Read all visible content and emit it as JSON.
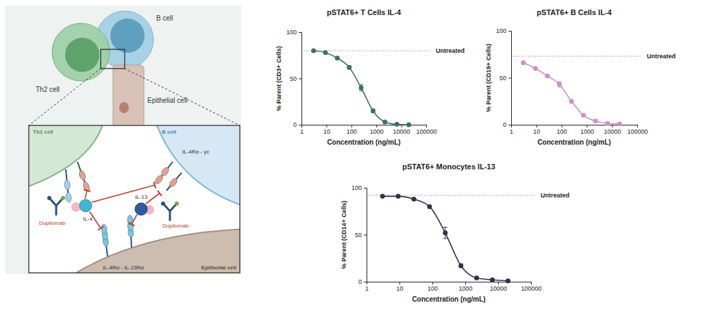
{
  "diagram": {
    "cells": [
      "Th2 cell",
      "B cell",
      "Epithelial cell"
    ],
    "inset": {
      "cells": [
        "Th2 cell",
        "B cell",
        "Epithelial cell"
      ],
      "receptors": [
        "IL-4Rα - γc",
        "IL-4Rα - IL-13Rα"
      ],
      "cytokines": [
        "IL-4",
        "IL-13"
      ],
      "drug": [
        "Dupilumab",
        "Dupilumab"
      ]
    }
  },
  "chart_data": [
    {
      "type": "line",
      "title": "pSTAT6+ T Cells IL-4",
      "xlabel": "Concentration (ng/mL)",
      "ylabel": "% Parent (CD3+ Cells)",
      "x": [
        3.05,
        9.14,
        27.4,
        82.3,
        247,
        741,
        2222,
        6667,
        20000
      ],
      "values": [
        80,
        78,
        72,
        62,
        40,
        15,
        3,
        0.5,
        0
      ],
      "errors": [
        0.5,
        0.8,
        1.5,
        2,
        3.5,
        2,
        0.5,
        0.3,
        0.2
      ],
      "color": "#3f6e6e",
      "marker": "circle",
      "log": "x",
      "grid": false,
      "xlim": [
        1,
        100000
      ],
      "xticks": [
        1,
        10,
        100,
        1000,
        10000,
        100000
      ],
      "ylim": [
        0,
        100
      ],
      "yticks": [
        0,
        50,
        100
      ],
      "annotations": [
        {
          "text": "Untreated",
          "y": 80
        }
      ]
    },
    {
      "type": "line",
      "title": "pSTAT6+ B Cells IL-4",
      "xlabel": "Concentration (ng/mL)",
      "ylabel": "% Parent (CD19+ Cells)",
      "x": [
        3.05,
        9.14,
        27.4,
        82.3,
        247,
        741,
        2222,
        6667,
        20000
      ],
      "values": [
        66,
        60,
        52,
        43,
        25,
        10,
        4,
        1.5,
        1
      ],
      "errors": [
        0.8,
        1,
        1,
        3,
        1,
        1,
        0.5,
        0.3,
        0.2
      ],
      "color": "#c993c2",
      "marker": "circle",
      "log": "x",
      "grid": false,
      "xlim": [
        1,
        100000
      ],
      "xticks": [
        1,
        10,
        100,
        1000,
        10000,
        100000
      ],
      "ylim": [
        0,
        100
      ],
      "yticks": [
        0,
        50,
        100
      ],
      "annotations": [
        {
          "text": "Untreated",
          "y": 73
        }
      ]
    },
    {
      "type": "line",
      "title": "pSTAT6+ Monocytes IL-13",
      "xlabel": "Concentration (ng/mL)",
      "ylabel": "% Parent (CD14+ Cells)",
      "x": [
        3.05,
        9.14,
        27.4,
        82.3,
        247,
        741,
        2222,
        6667,
        20000
      ],
      "values": [
        91,
        91,
        88,
        80,
        52,
        17,
        4,
        2,
        1
      ],
      "errors": [
        0.5,
        0.5,
        1,
        1,
        6,
        2,
        1,
        0.5,
        0.3
      ],
      "color": "#2b3445",
      "marker": "circle",
      "log": "x",
      "grid": false,
      "xlim": [
        1,
        100000
      ],
      "xticks": [
        1,
        10,
        100,
        1000,
        10000,
        100000
      ],
      "ylim": [
        0,
        100
      ],
      "yticks": [
        0,
        50,
        100
      ],
      "annotations": [
        {
          "text": "Untreated",
          "y": 92
        }
      ]
    }
  ]
}
